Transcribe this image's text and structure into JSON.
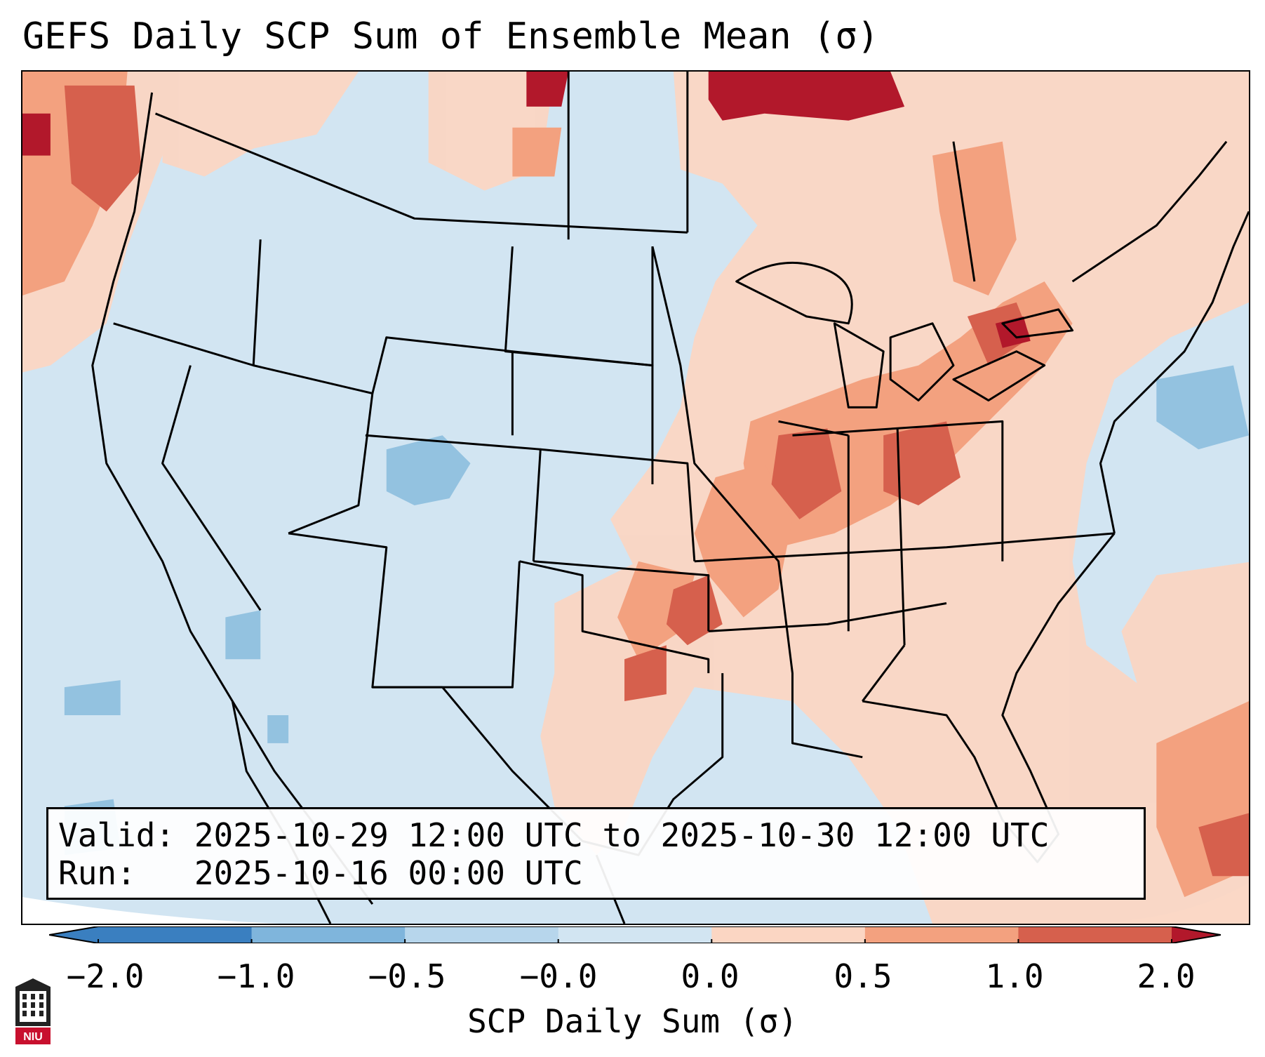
{
  "title": "GEFS Daily SCP Sum of Ensemble Mean (σ)",
  "info": {
    "valid_line": "Valid: 2025-10-29 12:00 UTC to 2025-10-30 12:00 UTC",
    "run_line": "Run:   2025-10-16 00:00 UTC"
  },
  "colorbar": {
    "label": "SCP Daily Sum (σ)",
    "ticks": [
      "−2.0",
      "−1.0",
      "−0.5",
      "−0.0",
      "0.0",
      "0.5",
      "1.0",
      "2.0"
    ],
    "colors": [
      "#3a7fc0",
      "#7fb5dc",
      "#b7d6ec",
      "#d2e5f2",
      "#fbd6c3",
      "#f3a17f",
      "#d6604d",
      "#b2182b"
    ]
  },
  "logo": {
    "text": "NIU"
  }
}
